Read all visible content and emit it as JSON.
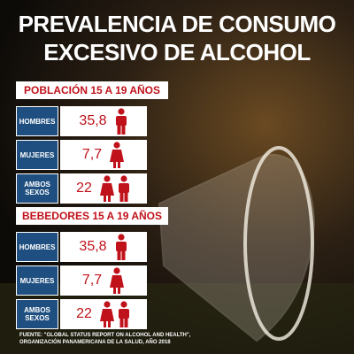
{
  "header": {
    "title_line1": "PREVALENCIA DE CONSUMO",
    "title_line2": "EXCESIVO DE ALCOHOL"
  },
  "sections": [
    {
      "title": "POBLACIÓN 15 A 19 AÑOS",
      "rows": [
        {
          "label": "HOMBRES",
          "value": "35,8"
        },
        {
          "label": "MUJERES",
          "value": "7,7"
        },
        {
          "label": "AMBOS SEXOS",
          "value": "22"
        }
      ]
    },
    {
      "title": "BEBEDORES 15 A 19 AÑOS",
      "rows": [
        {
          "label": "HOMBRES",
          "value": "35,8"
        },
        {
          "label": "MUJERES",
          "value": "7,7"
        },
        {
          "label": "AMBOS SEXOS",
          "value": "22"
        }
      ]
    }
  ],
  "footer": {
    "line1": "FUENTE: \"GLOBAL STATUS REPORT ON ALCOHOL AND HEALTH\",",
    "line2": "ORGANIZACIÓN PANAMERICANA DE LA SALUD, AÑO 2018"
  }
}
